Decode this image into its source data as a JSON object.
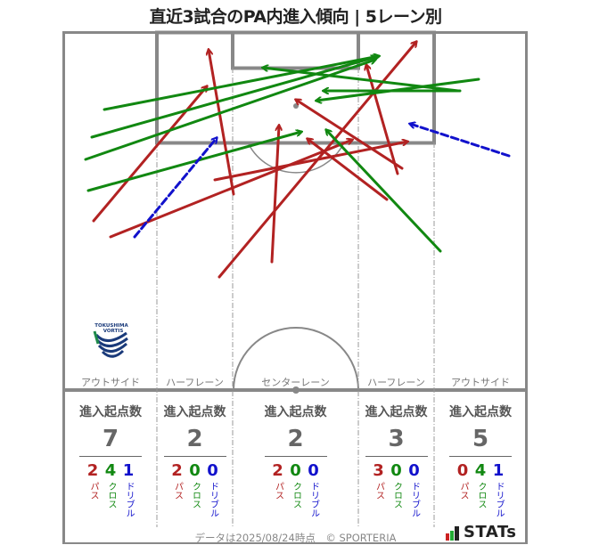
{
  "title": "直近3試合のPA内進入傾向 | 5レーン別",
  "colors": {
    "pass": "#b22222",
    "cross": "#118811",
    "dribble": "#1111cc",
    "line": "#888888"
  },
  "team_logo": {
    "line1": "TOKUSHIMA",
    "line2": "VORTIS"
  },
  "lanes": [
    {
      "label": "アウトサイド",
      "header": "進入起点数",
      "total": "7",
      "pass": "2",
      "cross": "4",
      "dribble": "1"
    },
    {
      "label": "ハーフレーン",
      "header": "進入起点数",
      "total": "2",
      "pass": "2",
      "cross": "0",
      "dribble": "0"
    },
    {
      "label": "センターレーン",
      "header": "進入起点数",
      "total": "2",
      "pass": "2",
      "cross": "0",
      "dribble": "0"
    },
    {
      "label": "ハーフレーン",
      "header": "進入起点数",
      "total": "3",
      "pass": "3",
      "cross": "0",
      "dribble": "0"
    },
    {
      "label": "アウトサイド",
      "header": "進入起点数",
      "total": "5",
      "pass": "0",
      "cross": "4",
      "dribble": "1"
    }
  ],
  "type_labels": {
    "pass": "パス",
    "cross": "クロス",
    "dribble": "ドリブル"
  },
  "footer": {
    "text": "データは2025/08/24時点　© SPORTERIA",
    "brand": "STATs"
  },
  "chart_data": {
    "type": "scatter",
    "title": "直近3試合のPA内進入傾向 | 5レーン別",
    "description": "Arrows from entry origin to PA entry target; pitch pixel coords (x right, y down)",
    "legend": [
      "パス",
      "クロス",
      "ドリブル"
    ],
    "lanes": [
      "アウトサイド",
      "ハーフレーン",
      "センターレーン",
      "ハーフレーン",
      "アウトサイド"
    ],
    "lane_totals": [
      7,
      2,
      2,
      3,
      5
    ],
    "lane_breakdown": {
      "pass": [
        2,
        2,
        2,
        3,
        0
      ],
      "cross": [
        4,
        0,
        0,
        0,
        4
      ],
      "dribble": [
        1,
        0,
        0,
        0,
        1
      ]
    },
    "arrows": [
      {
        "type": "pass",
        "from": [
          105,
          248
        ],
        "to": [
          232,
          97
        ]
      },
      {
        "type": "pass",
        "from": [
          262,
          218
        ],
        "to": [
          234,
          56
        ]
      },
      {
        "type": "pass",
        "from": [
          124,
          266
        ],
        "to": [
          395,
          157
        ]
      },
      {
        "type": "pass",
        "from": [
          241,
          202
        ],
        "to": [
          457,
          159
        ]
      },
      {
        "type": "pass",
        "from": [
          246,
          311
        ],
        "to": [
          467,
          47
        ]
      },
      {
        "type": "pass",
        "from": [
          305,
          294
        ],
        "to": [
          313,
          141
        ]
      },
      {
        "type": "pass",
        "from": [
          434,
          224
        ],
        "to": [
          345,
          156
        ]
      },
      {
        "type": "pass",
        "from": [
          451,
          189
        ],
        "to": [
          332,
          112
        ]
      },
      {
        "type": "pass",
        "from": [
          446,
          195
        ],
        "to": [
          411,
          73
        ]
      },
      {
        "type": "cross",
        "from": [
          117,
          123
        ],
        "to": [
          425,
          63
        ]
      },
      {
        "type": "cross",
        "from": [
          103,
          154
        ],
        "to": [
          422,
          64
        ]
      },
      {
        "type": "cross",
        "from": [
          96,
          179
        ],
        "to": [
          421,
          67
        ]
      },
      {
        "type": "cross",
        "from": [
          99,
          214
        ],
        "to": [
          338,
          148
        ]
      },
      {
        "type": "cross",
        "from": [
          537,
          89
        ],
        "to": [
          355,
          113
        ]
      },
      {
        "type": "cross",
        "from": [
          516,
          102
        ],
        "to": [
          363,
          102
        ]
      },
      {
        "type": "cross",
        "from": [
          514,
          102
        ],
        "to": [
          295,
          76
        ]
      },
      {
        "type": "cross",
        "from": [
          494,
          282
        ],
        "to": [
          366,
          146
        ]
      },
      {
        "type": "dribble",
        "from": [
          151,
          266
        ],
        "to": [
          243,
          155
        ]
      },
      {
        "type": "dribble",
        "from": [
          571,
          175
        ],
        "to": [
          460,
          139
        ]
      }
    ]
  }
}
